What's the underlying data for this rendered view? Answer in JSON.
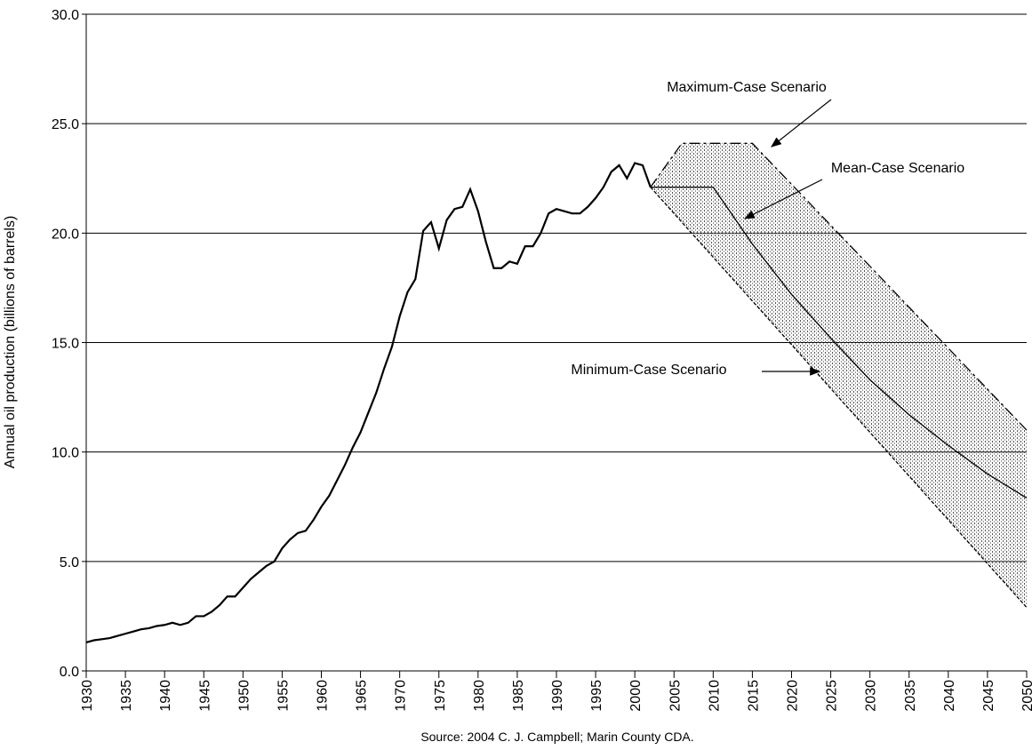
{
  "chart_data": {
    "type": "line",
    "y_label": "Annual oil production (billions of barrels)",
    "source": "Source: 2004 C. J. Campbell; Marin County CDA.",
    "xlim": [
      1930,
      2050
    ],
    "xticks": [
      1930,
      1935,
      1940,
      1945,
      1950,
      1955,
      1960,
      1965,
      1970,
      1975,
      1980,
      1985,
      1990,
      1995,
      2000,
      2005,
      2010,
      2015,
      2020,
      2025,
      2030,
      2035,
      2040,
      2045,
      2050
    ],
    "ylim": [
      0,
      30
    ],
    "yticks": [
      {
        "value": 0,
        "label": "0.0"
      },
      {
        "value": 5,
        "label": "5.0"
      },
      {
        "value": 10,
        "label": "10.0"
      },
      {
        "value": 15,
        "label": "15.0"
      },
      {
        "value": 20,
        "label": "20.0"
      },
      {
        "value": 25,
        "label": "25.0"
      },
      {
        "value": 30,
        "label": "30.0"
      }
    ],
    "grid": true,
    "band_fill": "hatched",
    "series": [
      {
        "color": "#000000",
        "dash": "solid",
        "x": [
          1930,
          1931,
          1932,
          1933,
          1934,
          1935,
          1936,
          1937,
          1938,
          1939,
          1940,
          1941,
          1942,
          1943,
          1944,
          1945,
          1946,
          1947,
          1948,
          1949,
          1950,
          1951,
          1952,
          1953,
          1954,
          1955,
          1956,
          1957,
          1958,
          1959,
          1960,
          1961,
          1962,
          1963,
          1964,
          1965,
          1966,
          1967,
          1968,
          1969,
          1970,
          1971,
          1972,
          1973,
          1974,
          1975,
          1976,
          1977,
          1978,
          1979,
          1980,
          1981,
          1982,
          1983,
          1984,
          1985,
          1986,
          1987,
          1988,
          1989,
          1990,
          1991,
          1992,
          1993,
          1994,
          1995,
          1996,
          1997,
          1998,
          1999,
          2000,
          2001,
          2002
        ],
        "values": [
          1.3,
          1.4,
          1.45,
          1.5,
          1.6,
          1.7,
          1.8,
          1.9,
          1.95,
          2.05,
          2.1,
          2.2,
          2.1,
          2.2,
          2.5,
          2.5,
          2.7,
          3.0,
          3.4,
          3.4,
          3.8,
          4.2,
          4.5,
          4.8,
          5.0,
          5.6,
          6.0,
          6.3,
          6.4,
          6.9,
          7.5,
          8.0,
          8.7,
          9.4,
          10.2,
          10.9,
          11.8,
          12.7,
          13.8,
          14.8,
          16.2,
          17.3,
          17.9,
          20.1,
          20.5,
          19.3,
          20.6,
          21.1,
          21.2,
          22.0,
          21.0,
          19.6,
          18.4,
          18.4,
          18.7,
          18.6,
          19.4,
          19.4,
          20.0,
          20.9,
          21.1,
          21.0,
          20.9,
          20.9,
          21.2,
          21.6,
          22.1,
          22.8,
          23.1,
          22.5,
          23.2,
          23.1,
          22.1
        ]
      },
      {
        "name": "Maximum-Case Scenario",
        "color": "#000000",
        "dash": "long-dash",
        "x": [
          2002,
          2006,
          2015,
          2050
        ],
        "values": [
          22.1,
          24.1,
          24.1,
          11.0
        ]
      },
      {
        "name": "Mean-Case Scenario",
        "color": "#000000",
        "dash": "solid-thin",
        "x": [
          2002,
          2010,
          2015,
          2020,
          2025,
          2030,
          2035,
          2040,
          2045,
          2050
        ],
        "values": [
          22.1,
          22.1,
          19.5,
          17.2,
          15.2,
          13.3,
          11.7,
          10.3,
          9.0,
          7.9
        ]
      },
      {
        "name": "Minimum-Case Scenario",
        "color": "#000000",
        "dash": "short-dash",
        "x": [
          2002,
          2050
        ],
        "values": [
          22.1,
          2.9
        ]
      }
    ]
  }
}
